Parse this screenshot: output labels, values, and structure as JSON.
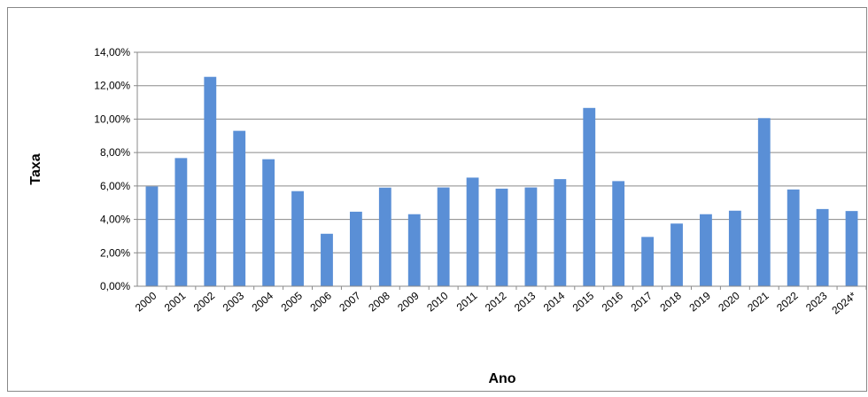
{
  "chart_data": {
    "type": "bar",
    "x_label": "Ano",
    "y_label": "Taxa",
    "categories": [
      "2000",
      "2001",
      "2002",
      "2003",
      "2004",
      "2005",
      "2006",
      "2007",
      "2008",
      "2009",
      "2010",
      "2011",
      "2012",
      "2013",
      "2014",
      "2015",
      "2016",
      "2017",
      "2018",
      "2019",
      "2020",
      "2021",
      "2022",
      "2023",
      "2024*"
    ],
    "values": [
      5.97,
      7.67,
      12.53,
      9.3,
      7.6,
      5.69,
      3.14,
      4.46,
      5.9,
      4.31,
      5.91,
      6.5,
      5.84,
      5.91,
      6.41,
      10.67,
      6.29,
      2.95,
      3.75,
      4.31,
      4.52,
      10.06,
      5.79,
      4.62,
      4.5
    ],
    "color": "#5a8fd6",
    "ylim": [
      0,
      14
    ],
    "yticks": [
      {
        "value": 0,
        "label": "0,00%"
      },
      {
        "value": 2,
        "label": "2,00%"
      },
      {
        "value": 4,
        "label": "4,00%"
      },
      {
        "value": 6,
        "label": "6,00%"
      },
      {
        "value": 8,
        "label": "8,00%"
      },
      {
        "value": 10,
        "label": "10,00%"
      },
      {
        "value": 12,
        "label": "12,00%"
      },
      {
        "value": 14,
        "label": "14,00%"
      }
    ],
    "grid": true
  }
}
